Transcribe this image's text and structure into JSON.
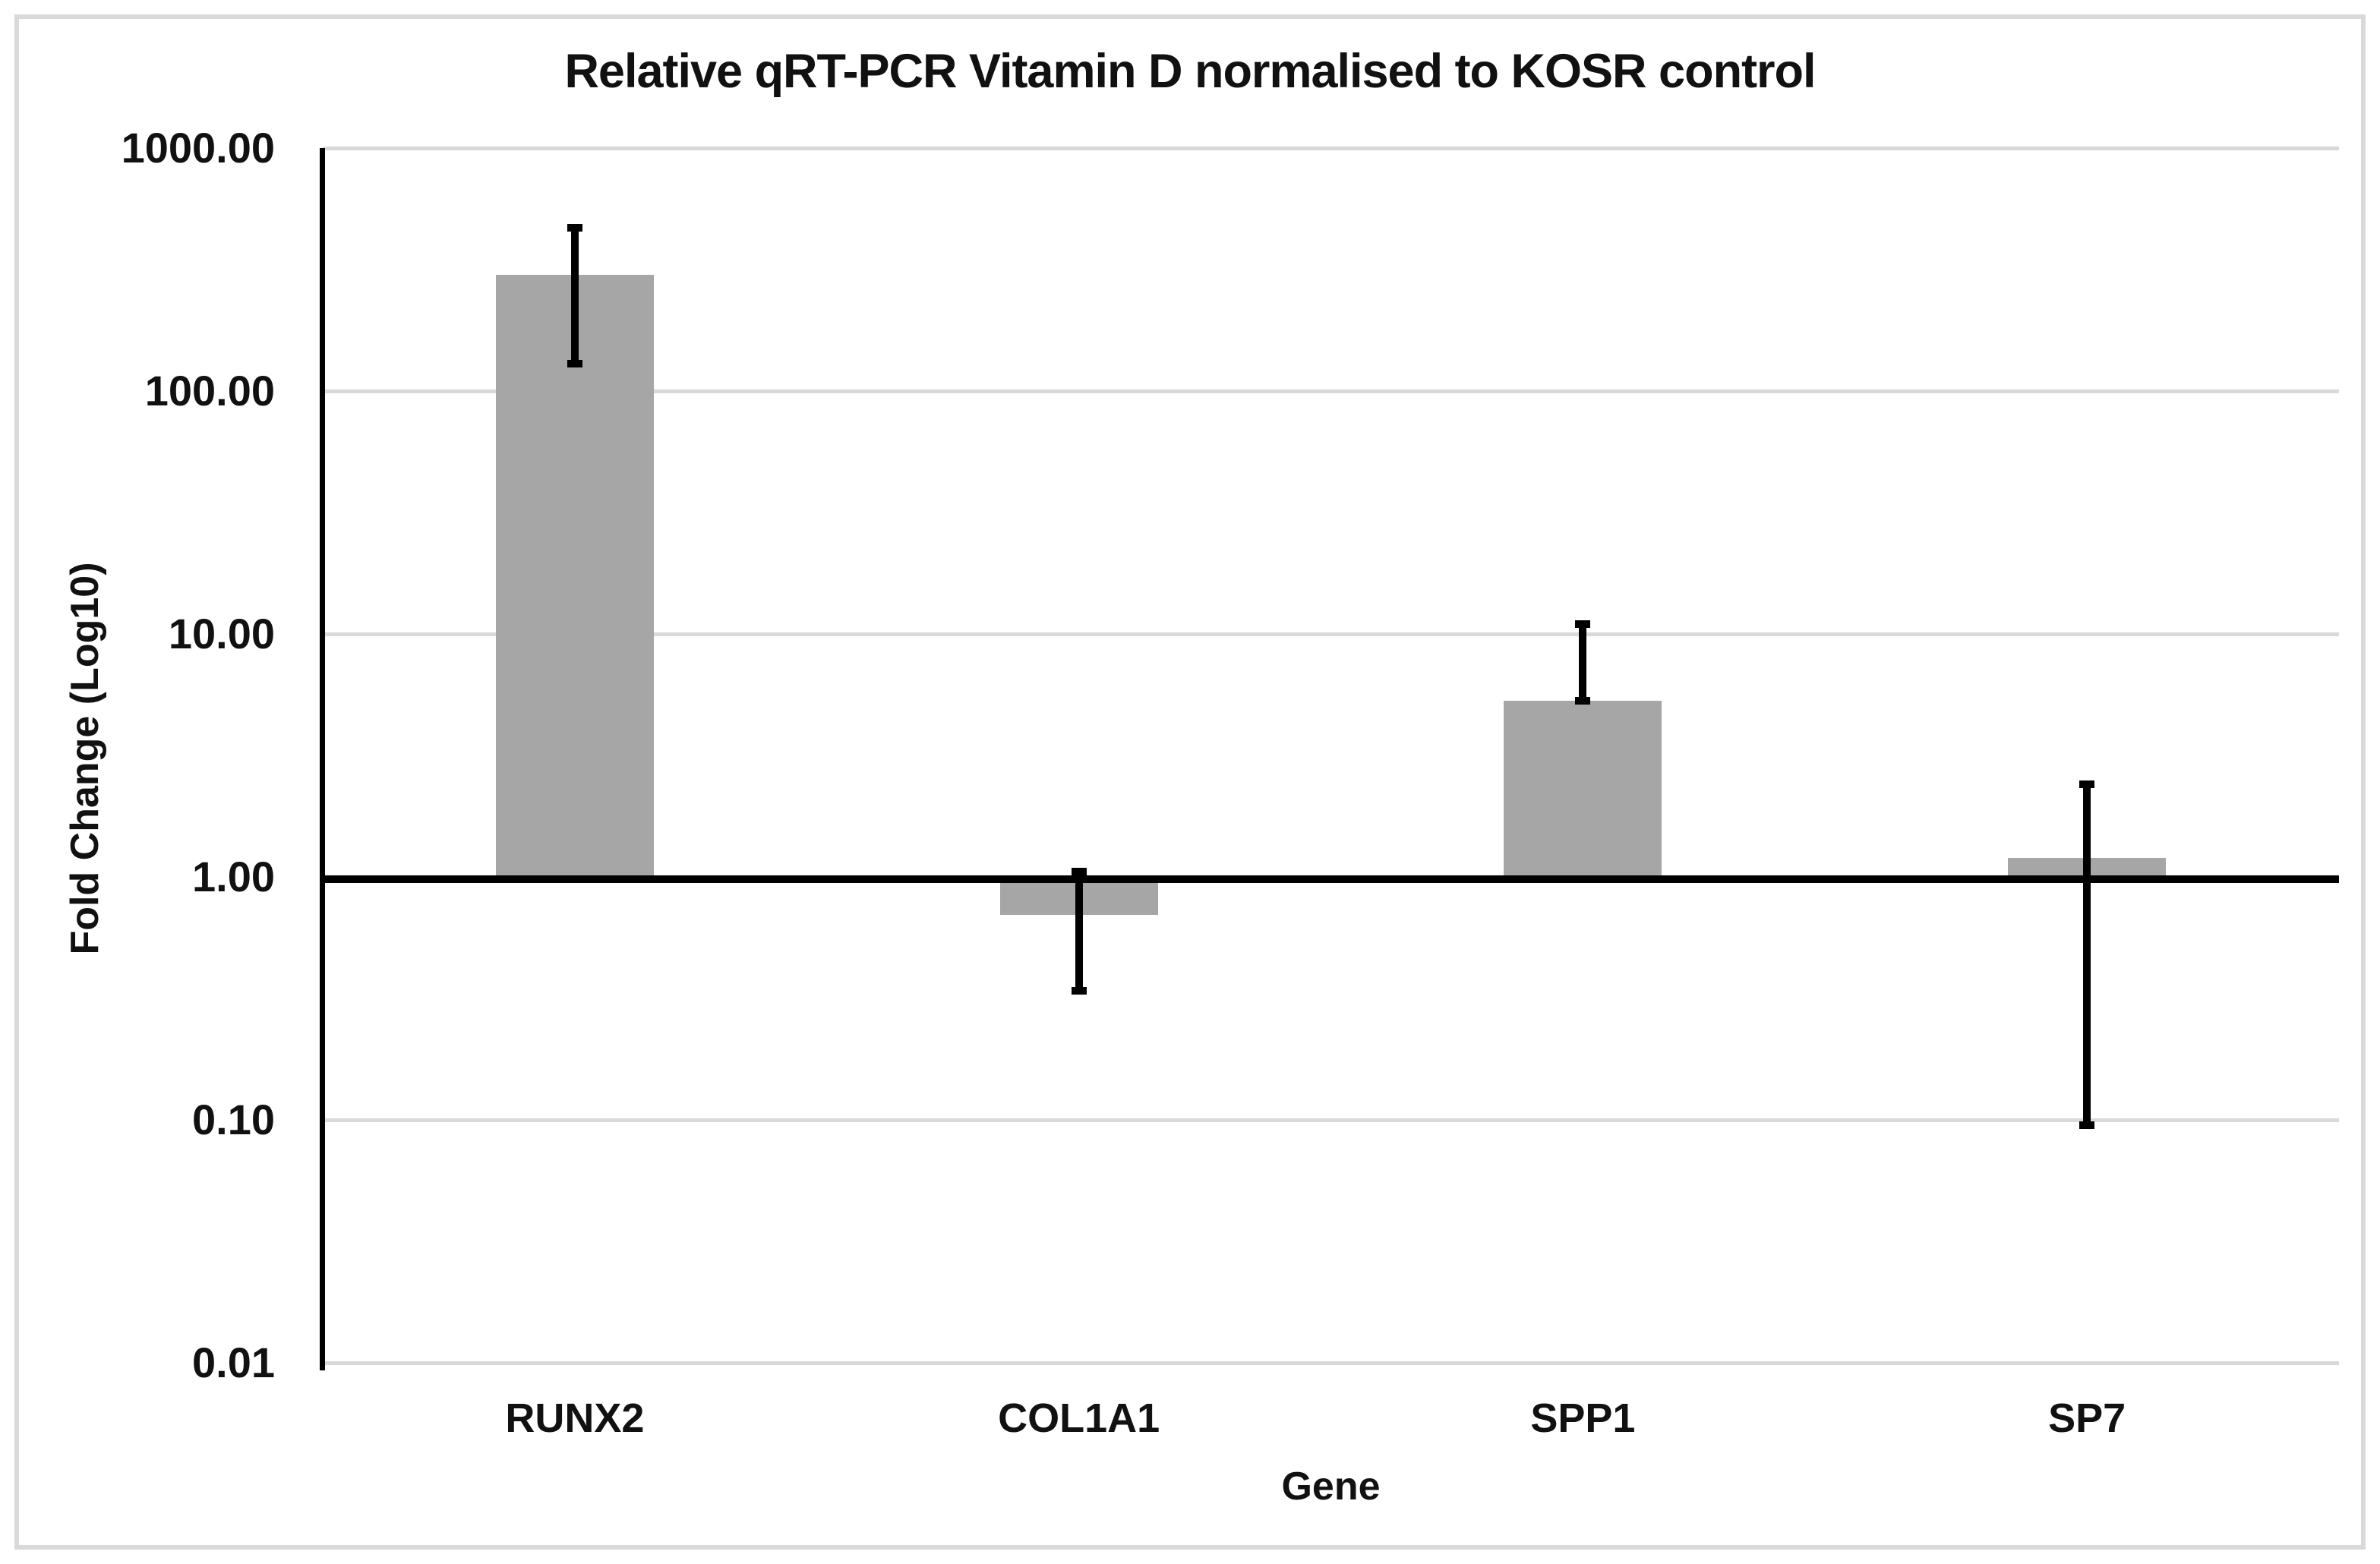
{
  "title": "Relative qRT-PCR Vitamin D normalised to KOSR control",
  "chart_data": {
    "type": "bar",
    "title": "Relative qRT-PCR Vitamin D normalised to KOSR control",
    "xlabel": "Gene",
    "ylabel": "Fold Change (Log10)",
    "y_scale": "log10",
    "ylim": [
      0.01,
      1000
    ],
    "y_ticks": [
      "1000.00",
      "100.00",
      "10.00",
      "1.00",
      "0.10",
      "0.01"
    ],
    "y_tick_values": [
      1000,
      100,
      10,
      1,
      0.1,
      0.01
    ],
    "baseline_value": 1.0,
    "grid": true,
    "legend": false,
    "categories": [
      "RUNX2",
      "COL1A1",
      "SPP1",
      "SP7"
    ],
    "values": [
      300,
      0.7,
      5.3,
      1.2
    ],
    "error_low": [
      130,
      0.34,
      5.3,
      0.095
    ],
    "error_high": [
      470,
      1.05,
      11,
      2.4
    ],
    "bar_color": "#a6a6a6",
    "gridline_color": "#d9d9d9",
    "baseline_color": "#000000",
    "border_color": "#d9d9d9"
  }
}
